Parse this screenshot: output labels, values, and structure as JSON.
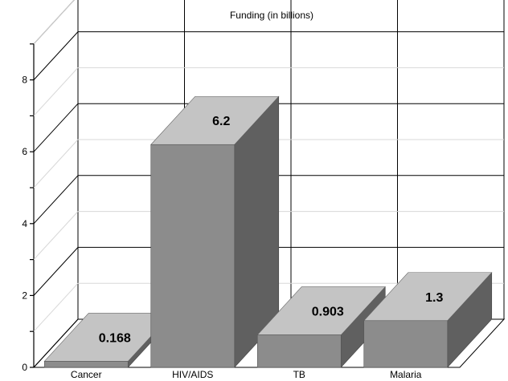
{
  "chart_data": {
    "type": "bar",
    "title": "Funding (in billions)",
    "categories": [
      "Cancer",
      "HIV/AIDS",
      "TB",
      "Malaria"
    ],
    "values": [
      0.168,
      6.2,
      0.903,
      1.3
    ],
    "value_labels": [
      "0.168",
      "6.2",
      "0.903",
      "1.3"
    ],
    "y_ticks": [
      "0",
      "2",
      "4",
      "6",
      "8"
    ],
    "ylim": [
      0,
      9
    ],
    "grid": true,
    "style": "3d",
    "colors": {
      "front": "#8c8c8c",
      "top": "#c4c4c4",
      "side": "#606060"
    }
  }
}
